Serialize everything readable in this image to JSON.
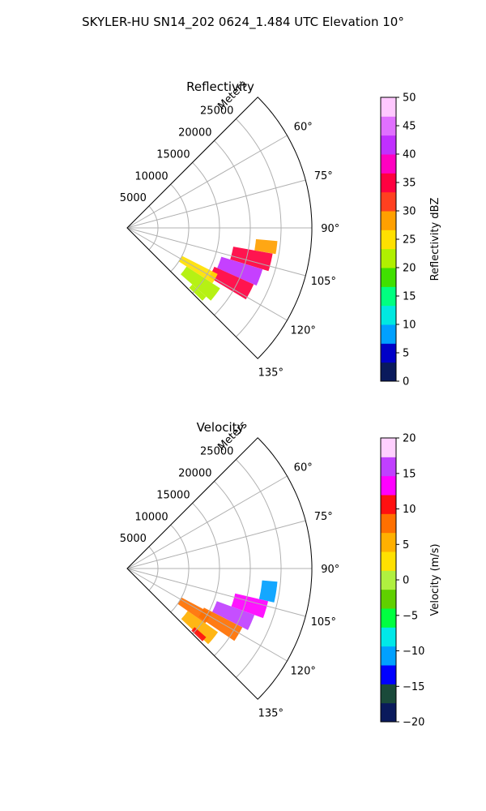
{
  "figure_title": "SKYLER-HU  SN14_202  0624_1.484 UTC Elevation 10°",
  "palette": {
    "grid": "#b0b0b0",
    "frame": "#000000"
  },
  "chart_data": [
    {
      "type": "polar-sector",
      "title": "Reflectivity",
      "radial_label": "Meters",
      "radial_ticks": [
        5000,
        10000,
        15000,
        20000,
        25000
      ],
      "r_max": 30000,
      "theta_ticks": [
        "60°",
        "75°",
        "90°",
        "105°",
        "120°",
        "135°"
      ],
      "theta_tick_values": [
        60,
        75,
        90,
        105,
        120,
        135
      ],
      "theta_range": [
        45,
        135
      ],
      "colorbar": {
        "label": "Reflectivity dBZ",
        "range": [
          0,
          50
        ],
        "ticks": [
          "0",
          "5",
          "10",
          "15",
          "20",
          "25",
          "30",
          "35",
          "40",
          "45",
          "50"
        ],
        "tick_values": [
          0,
          5,
          10,
          15,
          20,
          25,
          30,
          35,
          40,
          45,
          50
        ],
        "colors": [
          "#0a1a5c",
          "#0000c8",
          "#00a0ff",
          "#00e8e0",
          "#00ff80",
          "#40e000",
          "#b0f000",
          "#ffe000",
          "#ffa000",
          "#ff4020",
          "#ff0040",
          "#ff00c0",
          "#c030ff",
          "#e070ff",
          "#ffc8ff"
        ]
      },
      "echo_regions": [
        {
          "azimuth": [
            95,
            100
          ],
          "range": [
            21000,
            24500
          ],
          "value": 28
        },
        {
          "azimuth": [
            100,
            107
          ],
          "range": [
            17500,
            24000
          ],
          "value": 36
        },
        {
          "azimuth": [
            107,
            114
          ],
          "range": [
            16000,
            23000
          ],
          "value": 40
        },
        {
          "azimuth": [
            114,
            121
          ],
          "range": [
            15500,
            22500
          ],
          "value": 34
        },
        {
          "azimuth": [
            117,
            123
          ],
          "range": [
            10000,
            16500
          ],
          "value": 24
        },
        {
          "azimuth": [
            123,
            131
          ],
          "range": [
            11500,
            18000
          ],
          "value": 22
        },
        {
          "azimuth": [
            131,
            134
          ],
          "range": [
            14000,
            17000
          ],
          "value": 20
        }
      ]
    },
    {
      "type": "polar-sector",
      "title": "Velocity",
      "radial_label": "Meters",
      "radial_ticks": [
        5000,
        10000,
        15000,
        20000,
        25000
      ],
      "r_max": 30000,
      "theta_ticks": [
        "60°",
        "75°",
        "90°",
        "105°",
        "120°",
        "135°"
      ],
      "theta_tick_values": [
        60,
        75,
        90,
        105,
        120,
        135
      ],
      "theta_range": [
        45,
        135
      ],
      "colorbar": {
        "label": "Velocity (m/s)",
        "range": [
          -20,
          20
        ],
        "ticks": [
          "−20",
          "−15",
          "−10",
          "−5",
          "0",
          "5",
          "10",
          "15",
          "20"
        ],
        "tick_values": [
          -20,
          -15,
          -10,
          -5,
          0,
          5,
          10,
          15,
          20
        ],
        "colors": [
          "#0a1a5c",
          "#1a4a3a",
          "#0000ff",
          "#00a0ff",
          "#00e8e8",
          "#00ff40",
          "#60d000",
          "#b0f040",
          "#ffe000",
          "#ffb000",
          "#ff7000",
          "#ff1010",
          "#ff00ff",
          "#c040ff",
          "#ffd0ff"
        ]
      },
      "echo_regions": [
        {
          "azimuth": [
            95,
            103
          ],
          "range": [
            22000,
            24500
          ],
          "value": -11
        },
        {
          "azimuth": [
            103,
            110
          ],
          "range": [
            18000,
            23500
          ],
          "value": 13
        },
        {
          "azimuth": [
            110,
            117
          ],
          "range": [
            15500,
            22000
          ],
          "value": 15
        },
        {
          "azimuth": [
            117,
            124
          ],
          "range": [
            14000,
            21000
          ],
          "value": 8
        },
        {
          "azimuth": [
            118,
            125
          ],
          "range": [
            10000,
            15500
          ],
          "value": 9
        },
        {
          "azimuth": [
            125,
            133
          ],
          "range": [
            12000,
            18000
          ],
          "value": 4
        },
        {
          "azimuth": [
            131,
            134
          ],
          "range": [
            14500,
            17000
          ],
          "value": 11
        }
      ]
    }
  ]
}
